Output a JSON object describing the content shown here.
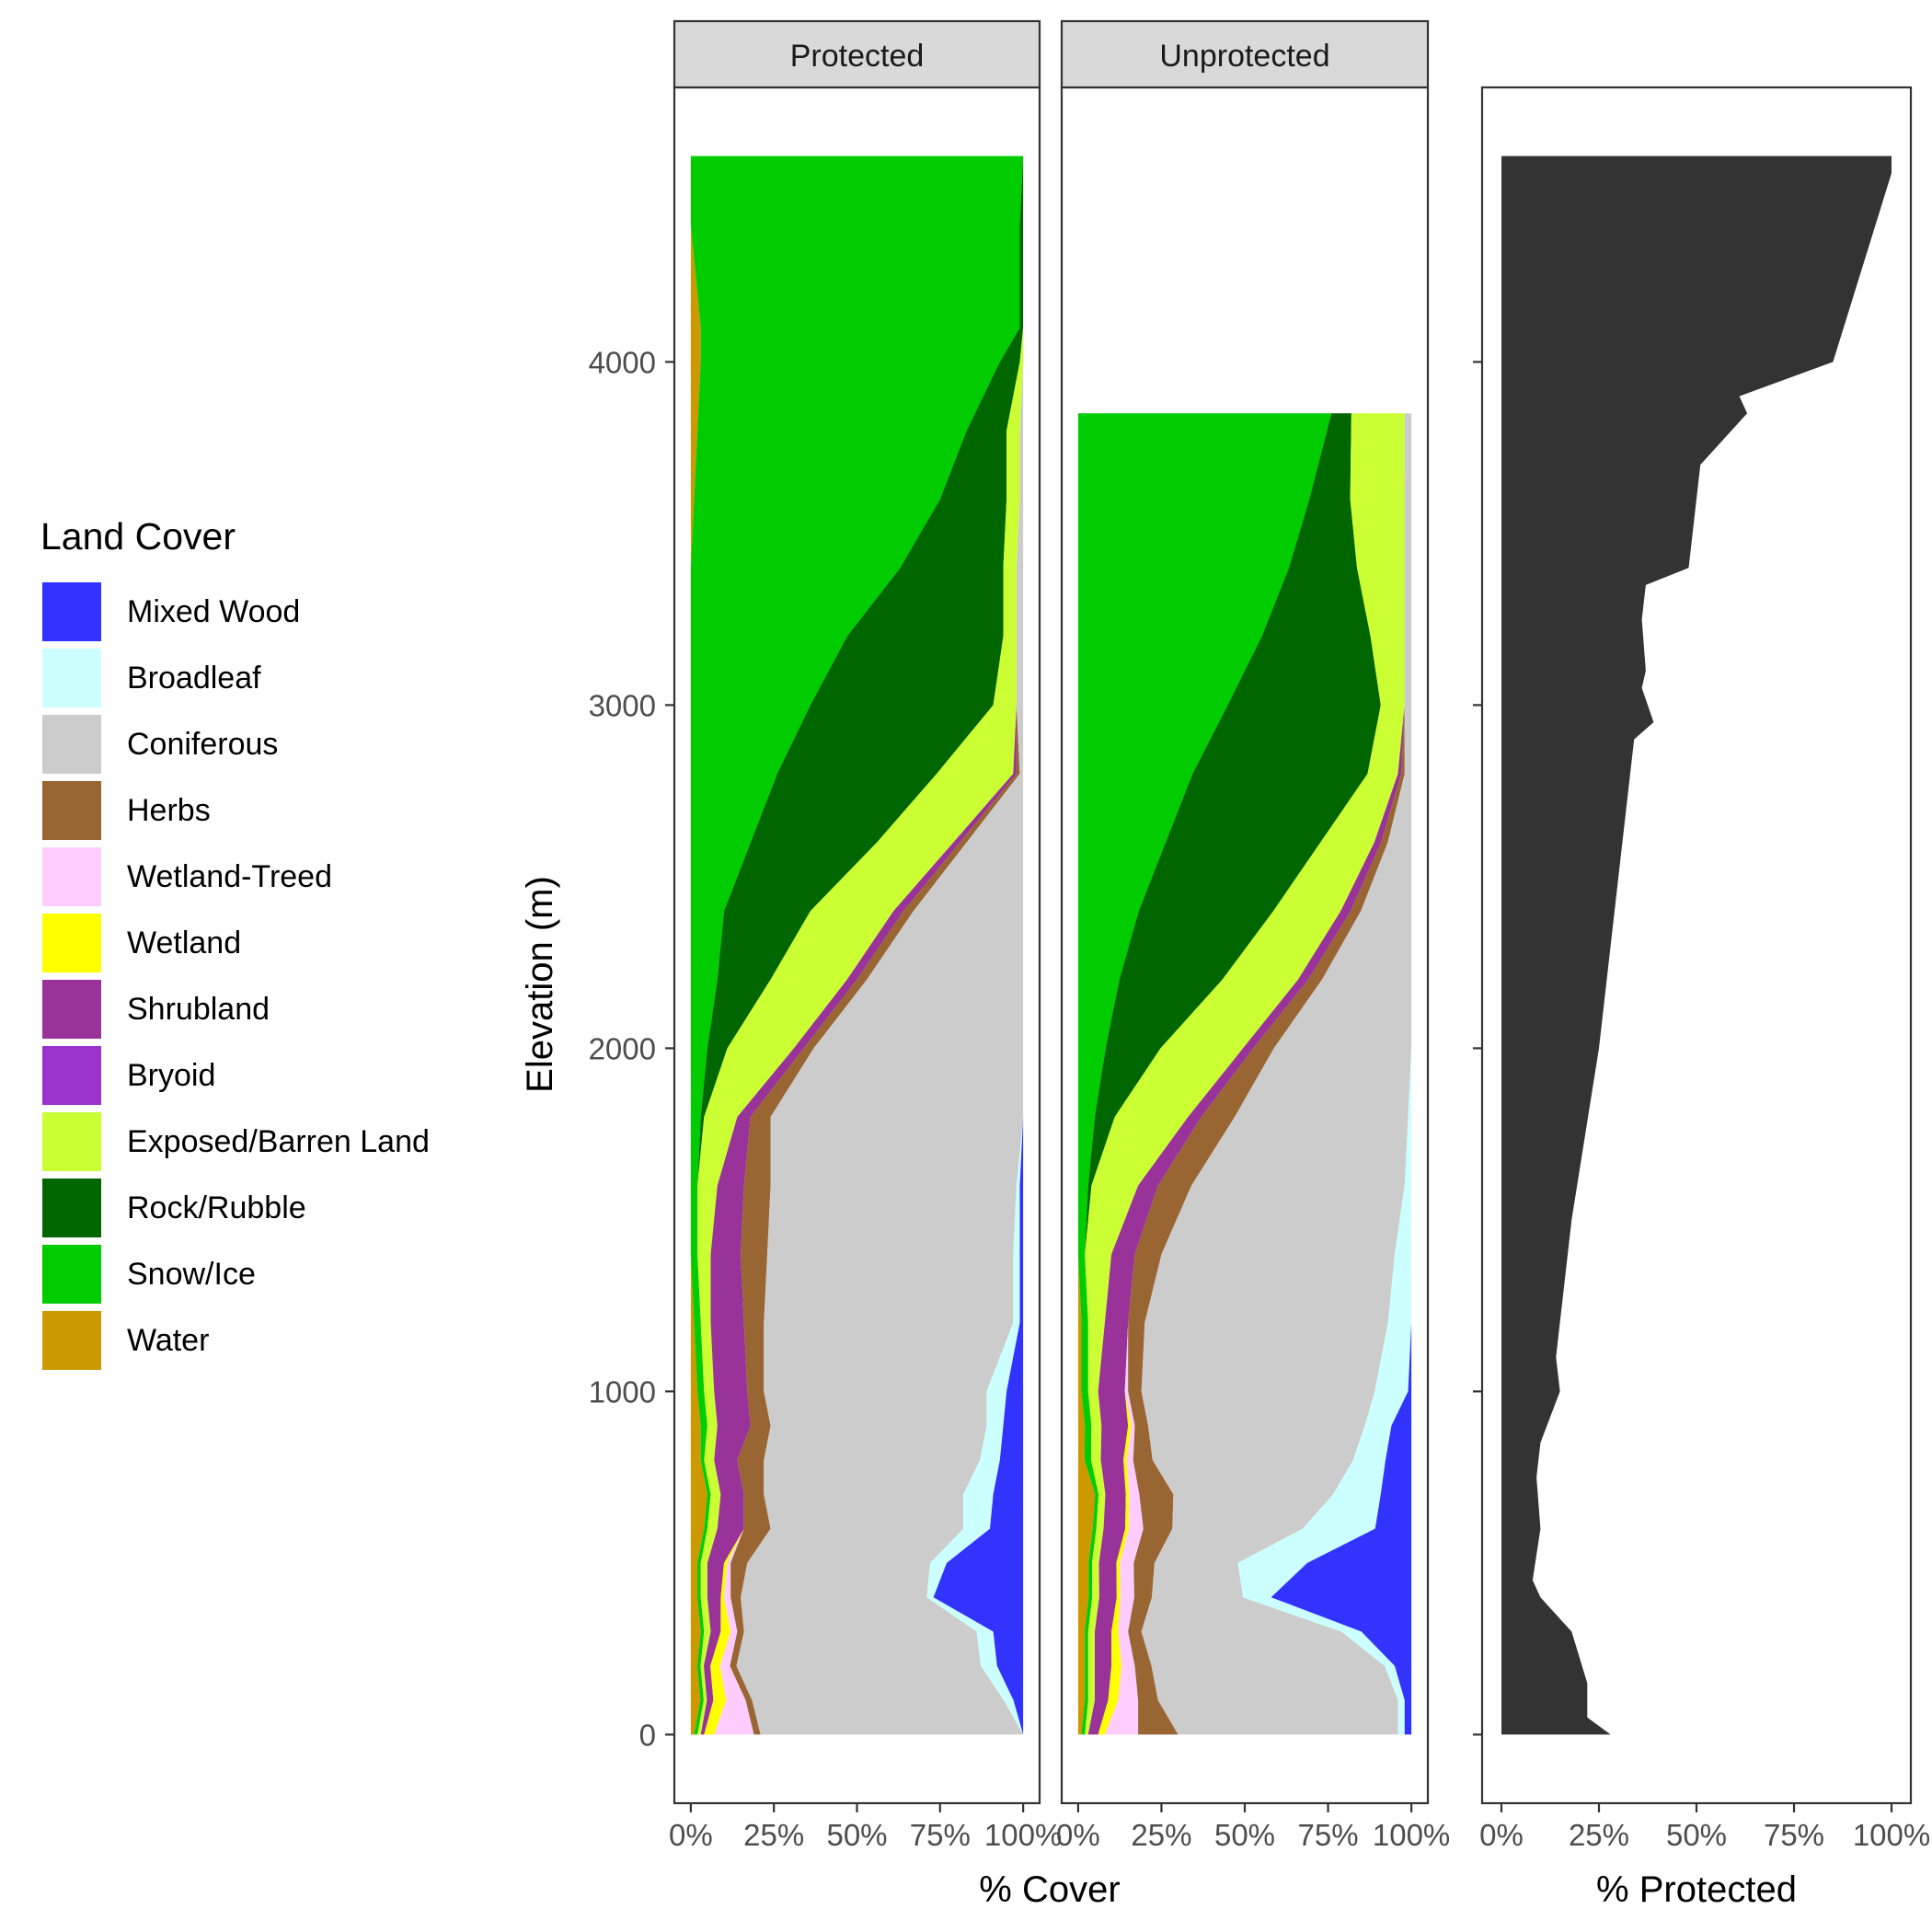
{
  "chart_data": [
    {
      "type": "area",
      "orientation": "horizontal-stacked-percent",
      "facet_labels": [
        "Protected",
        "Unprotected"
      ],
      "xlabel": "% Cover",
      "ylabel": "Elevation (m)",
      "xlim": [
        0,
        100
      ],
      "ylim": [
        -200,
        4800
      ],
      "x_ticks": [
        "0%",
        "25%",
        "50%",
        "75%",
        "100%"
      ],
      "y_ticks": [
        "0",
        "1000",
        "2000",
        "3000",
        "4000"
      ],
      "legend_title": "Land Cover",
      "legend_position": "left",
      "grid": false,
      "elevation": [
        0,
        100,
        200,
        300,
        400,
        500,
        600,
        700,
        800,
        900,
        1000,
        1200,
        1400,
        1600,
        1800,
        2000,
        2200,
        2400,
        2600,
        2800,
        3000,
        3200,
        3400,
        3600,
        3800,
        4000,
        4100,
        4200,
        4400,
        4600
      ],
      "stack_order": [
        "Water",
        "Snow/Ice",
        "Rock/Rubble",
        "Exposed/Barren Land",
        "Bryoid",
        "Shrubland",
        "Wetland",
        "Wetland-Treed",
        "Herbs",
        "Coniferous",
        "Broadleaf",
        "Mixed Wood"
      ],
      "classes": [
        {
          "name": "Mixed Wood",
          "color": "#3333FF"
        },
        {
          "name": "Broadleaf",
          "color": "#CCFFFF"
        },
        {
          "name": "Coniferous",
          "color": "#CCCCCC"
        },
        {
          "name": "Herbs",
          "color": "#996633"
        },
        {
          "name": "Wetland-Treed",
          "color": "#FFCCFF"
        },
        {
          "name": "Wetland",
          "color": "#FFFF00"
        },
        {
          "name": "Shrubland",
          "color": "#993399"
        },
        {
          "name": "Bryoid",
          "color": "#9933CC"
        },
        {
          "name": "Exposed/Barren Land",
          "color": "#CCFF33"
        },
        {
          "name": "Rock/Rubble",
          "color": "#006600"
        },
        {
          "name": "Snow/Ice",
          "color": "#00CC00"
        },
        {
          "name": "Water",
          "color": "#CC9900"
        }
      ],
      "panels": {
        "Protected": {
          "elevation_max": 4600,
          "series": {
            "Water": [
              1,
              3,
              2,
              3,
              2,
              2,
              4,
              5,
              3,
              3,
              2,
              1,
              0,
              0,
              0,
              0,
              0,
              0,
              0,
              0,
              0,
              0,
              0,
              1,
              2,
              3,
              3,
              2,
              0,
              0
            ],
            "Snow/Ice": [
              1,
              1,
              1,
              1,
              1,
              1,
              1,
              1,
              1,
              2,
              2,
              2,
              2,
              2,
              3,
              5,
              8,
              10,
              18,
              26,
              36,
              47,
              63,
              74,
              81,
              90,
              96,
              97,
              99,
              100
            ],
            "Rock/Rubble": [
              0,
              0,
              0,
              0,
              0,
              0,
              0,
              0,
              0,
              0,
              0,
              0,
              0,
              0,
              1,
              6,
              16,
              26,
              38,
              48,
              55,
              47,
              31,
              20,
              12,
              6,
              1,
              1,
              1,
              0
            ],
            "Exposed/Barren Land": [
              1,
              1,
              1,
              2,
              2,
              2,
              3,
              3,
              3,
              3,
              3,
              3,
              4,
              6,
              10,
              20,
              23,
              25,
              23,
              23,
              7,
              4,
              4,
              4,
              4,
              1,
              0,
              0,
              0,
              0
            ],
            "Bryoid": [
              0,
              0,
              0,
              0,
              0,
              0,
              0,
              0,
              0,
              0,
              0,
              0,
              0,
              0,
              0,
              0,
              0,
              0,
              0,
              0,
              0,
              0,
              0,
              0,
              0,
              0,
              0,
              0,
              0,
              0
            ],
            "Shrubland": [
              1,
              2,
              2,
              3,
              4,
              5,
              8,
              7,
              7,
              10,
              10,
              10,
              9,
              8,
              4,
              3,
              3,
              3,
              2,
              1,
              0,
              0,
              0,
              0,
              0,
              0,
              0,
              0,
              0,
              0
            ],
            "Wetland": [
              3,
              4,
              3,
              3,
              1,
              1,
              0,
              0,
              0,
              0,
              0,
              0,
              0,
              0,
              0,
              0,
              0,
              0,
              0,
              0,
              0,
              0,
              0,
              0,
              0,
              0,
              0,
              0,
              0,
              0
            ],
            "Wetland-Treed": [
              12,
              6,
              3,
              2,
              2,
              1,
              0,
              0,
              0,
              0,
              0,
              0,
              0,
              0,
              0,
              0,
              0,
              0,
              0,
              0,
              0,
              0,
              0,
              0,
              0,
              0,
              0,
              0,
              0,
              0
            ],
            "Herbs": [
              2,
              2,
              2,
              2,
              3,
              5,
              8,
              6,
              8,
              6,
              5,
              6,
              8,
              8,
              6,
              3,
              3,
              3,
              2,
              1,
              0,
              0,
              0,
              0,
              0,
              0,
              0,
              0,
              0,
              0
            ],
            "Coniferous": [
              79,
              78,
              75,
              70,
              56,
              55,
              58,
              60,
              65,
              65,
              67,
              75,
              74,
              74,
              76,
              63,
              47,
              33,
              17,
              1,
              2,
              2,
              2,
              1,
              1,
              0,
              0,
              0,
              0,
              0
            ],
            "Broadleaf": [
              0,
              3,
              5,
              5,
              2,
              5,
              8,
              9,
              6,
              5,
              6,
              2,
              2,
              1,
              0,
              0,
              0,
              0,
              0,
              0,
              0,
              0,
              0,
              0,
              0,
              0,
              0,
              0,
              0,
              0
            ],
            "Mixed Wood": [
              0,
              3,
              8,
              9,
              27,
              23,
              10,
              9,
              7,
              6,
              5,
              1,
              1,
              1,
              0,
              0,
              0,
              0,
              0,
              0,
              0,
              0,
              0,
              0,
              0,
              0,
              0,
              0,
              0,
              0
            ]
          }
        },
        "Unprotected": {
          "elevation_max": 3950,
          "series": {
            "Water": [
              1,
              2,
              2,
              2,
              3,
              3,
              4,
              5,
              2,
              2,
              1,
              1,
              0,
              0,
              0,
              0,
              0,
              0,
              0,
              0,
              0,
              0,
              0,
              0,
              0,
              0,
              0,
              0,
              0,
              0
            ],
            "Snow/Ice": [
              1,
              1,
              1,
              1,
              1,
              1,
              1,
              1,
              2,
              2,
              2,
              2,
              2,
              3,
              5,
              8,
              12,
              18,
              26,
              34,
              44,
              54,
              62,
              68,
              76,
              84,
              0,
              0,
              0,
              0
            ],
            "Rock/Rubble": [
              0,
              0,
              0,
              0,
              0,
              0,
              0,
              0,
              0,
              0,
              0,
              0,
              0,
              1,
              6,
              16,
              30,
              40,
              46,
              52,
              45,
              32,
              20,
              12,
              6,
              2,
              0,
              0,
              0,
              0
            ],
            "Exposed/Barren Land": [
              1,
              2,
              2,
              2,
              2,
              2,
              2,
              2,
              3,
              3,
              3,
              5,
              8,
              14,
              22,
              24,
              22,
              20,
              16,
              9,
              7,
              10,
              14,
              16,
              16,
              14,
              0,
              0,
              0,
              0
            ],
            "Bryoid": [
              0,
              0,
              0,
              0,
              0,
              0,
              0,
              0,
              0,
              0,
              0,
              0,
              0,
              0,
              0,
              0,
              0,
              0,
              0,
              0,
              0,
              0,
              0,
              0,
              0,
              0,
              0,
              0,
              0,
              0
            ],
            "Shrubland": [
              3,
              4,
              5,
              5,
              5,
              5,
              6,
              6,
              7,
              8,
              8,
              7,
              7,
              6,
              4,
              3,
              3,
              3,
              2,
              1,
              0,
              0,
              0,
              0,
              0,
              0,
              0,
              0,
              0,
              0
            ],
            "Wetland": [
              2,
              3,
              3,
              2,
              1,
              1,
              1,
              1,
              1,
              1,
              0,
              0,
              0,
              0,
              0,
              0,
              0,
              0,
              0,
              0,
              0,
              0,
              0,
              0,
              0,
              0,
              0,
              0,
              0,
              0
            ],
            "Wetland-Treed": [
              10,
              6,
              4,
              3,
              4,
              4,
              4,
              3,
              2,
              1,
              1,
              0,
              0,
              0,
              0,
              0,
              0,
              0,
              0,
              0,
              0,
              0,
              0,
              0,
              0,
              0,
              0,
              0,
              0,
              0
            ],
            "Herbs": [
              12,
              6,
              5,
              4,
              5,
              6,
              8,
              10,
              6,
              4,
              4,
              5,
              8,
              10,
              10,
              6,
              4,
              3,
              2,
              1,
              0,
              0,
              0,
              0,
              0,
              0,
              0,
              0,
              0,
              0
            ],
            "Coniferous": [
              66,
              72,
              70,
              60,
              26,
              24,
              36,
              47,
              62,
              65,
              70,
              73,
              70,
              64,
              52,
              40,
              26,
              15,
              7,
              2,
              2,
              2,
              2,
              2,
              2,
              0,
              0,
              0,
              0,
              0
            ],
            "Broadleaf": [
              2,
              2,
              3,
              6,
              8,
              20,
              20,
              14,
              10,
              8,
              10,
              7,
              5,
              2,
              1,
              0,
              0,
              0,
              0,
              0,
              0,
              0,
              0,
              0,
              0,
              0,
              0,
              0,
              0,
              0
            ],
            "Mixed Wood": [
              2,
              2,
              5,
              15,
              40,
              30,
              10,
              9,
              8,
              6,
              1,
              0,
              0,
              0,
              0,
              0,
              0,
              0,
              0,
              0,
              0,
              0,
              0,
              0,
              0,
              0,
              0,
              0,
              0,
              0
            ]
          }
        }
      }
    },
    {
      "type": "area",
      "xlabel": "% Protected",
      "ylabel": "Elevation (m)",
      "xlim": [
        0,
        100
      ],
      "ylim": [
        -200,
        4800
      ],
      "x_ticks": [
        "0%",
        "25%",
        "50%",
        "75%",
        "100%"
      ],
      "grid": false,
      "elevation": [
        0,
        50,
        150,
        300,
        400,
        450,
        600,
        750,
        850,
        1000,
        1100,
        1500,
        2000,
        2500,
        2900,
        2950,
        3050,
        3100,
        3250,
        3350,
        3400,
        3700,
        3850,
        3900,
        4000,
        4550,
        4600
      ],
      "x": [
        28,
        22,
        22,
        18,
        10,
        8,
        10,
        9,
        10,
        15,
        14,
        18,
        25,
        30,
        34,
        39,
        36,
        37,
        36,
        37,
        48,
        51,
        63,
        61,
        85,
        100,
        100
      ]
    }
  ]
}
